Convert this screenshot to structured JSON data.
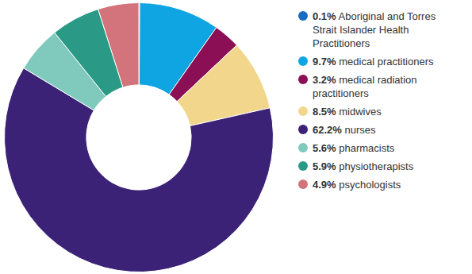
{
  "chart_data": {
    "type": "doughnut",
    "categories": [
      "Aboriginal and Torres Strait Islander Health Practitioners",
      "medical practitioners",
      "medical radiation practitioners",
      "midwives",
      "nurses",
      "pharmacists",
      "physiotherapists",
      "psychologists"
    ],
    "values": [
      0.1,
      9.7,
      3.2,
      8.5,
      62.2,
      5.6,
      5.9,
      4.9
    ],
    "value_labels": [
      "0.1%",
      "9.7%",
      "3.2%",
      "8.5%",
      "62.2%",
      "5.6%",
      "5.9%",
      "4.9%"
    ],
    "colors": [
      "#1a6cc2",
      "#0ea5e2",
      "#8a0f54",
      "#f1d68c",
      "#3b2277",
      "#80c9bd",
      "#2a9a86",
      "#d3737b"
    ],
    "legend": "right"
  }
}
